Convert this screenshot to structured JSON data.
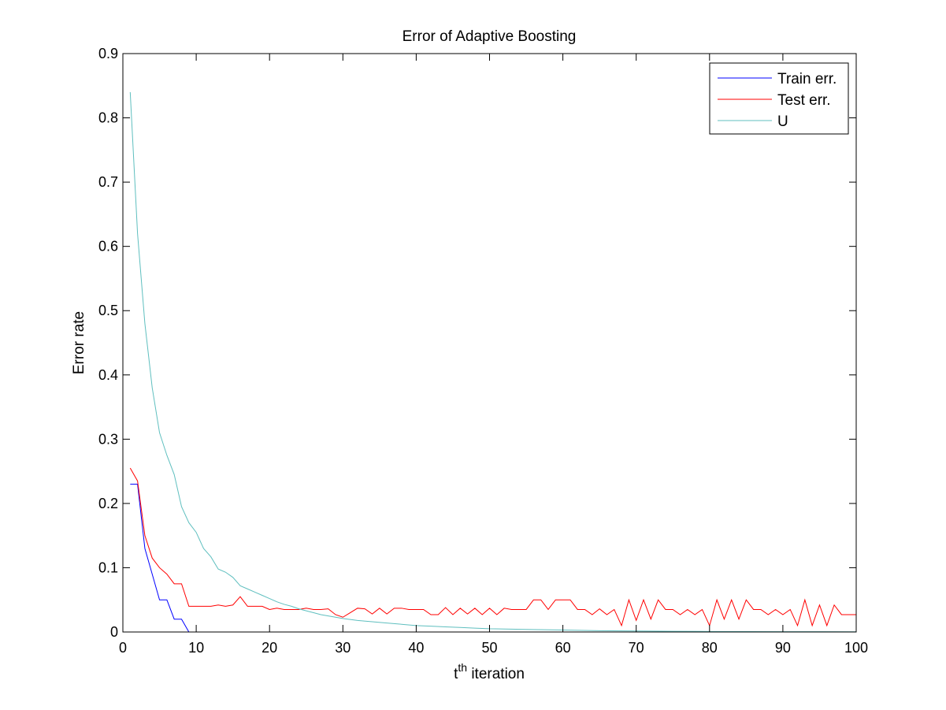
{
  "chart_data": {
    "type": "line",
    "title": "Error of Adaptive Boosting",
    "xlabel_base": "t",
    "xlabel_superscript": "th",
    "xlabel_rest": " iteration",
    "ylabel": "Error rate",
    "xlim": [
      0,
      100
    ],
    "ylim": [
      0,
      0.9
    ],
    "xticks": [
      0,
      10,
      20,
      30,
      40,
      50,
      60,
      70,
      80,
      90,
      100
    ],
    "yticks": [
      0,
      0.1,
      0.2,
      0.3,
      0.4,
      0.5,
      0.6,
      0.7,
      0.8,
      0.9
    ],
    "grid": false,
    "legend_position": "top-right",
    "series": [
      {
        "name": "Train err.",
        "color": "#0000ff",
        "x": [
          1,
          2,
          3,
          4,
          5,
          6,
          7,
          8,
          9
        ],
        "y": [
          0.23,
          0.23,
          0.13,
          0.09,
          0.05,
          0.05,
          0.02,
          0.02,
          0.0
        ]
      },
      {
        "name": "Test err.",
        "color": "#ff0000",
        "x": [
          1,
          2,
          3,
          4,
          5,
          6,
          7,
          8,
          9,
          10,
          11,
          12,
          13,
          14,
          15,
          16,
          17,
          18,
          19,
          20,
          21,
          22,
          23,
          24,
          25,
          26,
          27,
          28,
          29,
          30,
          31,
          32,
          33,
          34,
          35,
          36,
          37,
          38,
          39,
          40,
          41,
          42,
          43,
          44,
          45,
          46,
          47,
          48,
          49,
          50,
          51,
          52,
          53,
          54,
          55,
          56,
          57,
          58,
          59,
          60,
          61,
          62,
          63,
          64,
          65,
          66,
          67,
          68,
          69,
          70,
          71,
          72,
          73,
          74,
          75,
          76,
          77,
          78,
          79,
          80,
          81,
          82,
          83,
          84,
          85,
          86,
          87,
          88,
          89,
          90,
          91,
          92,
          93,
          94,
          95,
          96,
          97,
          98,
          99,
          100
        ],
        "y": [
          0.255,
          0.235,
          0.15,
          0.115,
          0.1,
          0.09,
          0.075,
          0.075,
          0.04,
          0.04,
          0.04,
          0.04,
          0.042,
          0.04,
          0.042,
          0.055,
          0.04,
          0.04,
          0.04,
          0.035,
          0.037,
          0.035,
          0.035,
          0.035,
          0.037,
          0.035,
          0.035,
          0.036,
          0.027,
          0.023,
          0.03,
          0.037,
          0.036,
          0.028,
          0.037,
          0.028,
          0.037,
          0.037,
          0.035,
          0.035,
          0.035,
          0.027,
          0.027,
          0.038,
          0.027,
          0.037,
          0.028,
          0.037,
          0.027,
          0.037,
          0.027,
          0.037,
          0.035,
          0.035,
          0.035,
          0.05,
          0.05,
          0.035,
          0.05,
          0.05,
          0.05,
          0.035,
          0.035,
          0.027,
          0.036,
          0.027,
          0.035,
          0.01,
          0.05,
          0.018,
          0.05,
          0.02,
          0.05,
          0.035,
          0.035,
          0.027,
          0.035,
          0.027,
          0.035,
          0.01,
          0.05,
          0.02,
          0.05,
          0.02,
          0.05,
          0.035,
          0.035,
          0.027,
          0.035,
          0.027,
          0.035,
          0.01,
          0.05,
          0.01,
          0.042,
          0.01,
          0.042,
          0.027,
          0.027,
          0.027
        ]
      },
      {
        "name": "U",
        "color": "#5fbfbf",
        "x": [
          1,
          2,
          3,
          4,
          5,
          6,
          7,
          8,
          9,
          10,
          11,
          12,
          13,
          14,
          15,
          16,
          17,
          18,
          19,
          20,
          21,
          22,
          23,
          24,
          25,
          26,
          27,
          28,
          29,
          30,
          32,
          34,
          36,
          38,
          40,
          42,
          44,
          46,
          48,
          50,
          55,
          60,
          65,
          70,
          75,
          80,
          85,
          90,
          95,
          100
        ],
        "y": [
          0.84,
          0.62,
          0.48,
          0.38,
          0.31,
          0.275,
          0.245,
          0.195,
          0.17,
          0.155,
          0.13,
          0.117,
          0.098,
          0.093,
          0.085,
          0.072,
          0.067,
          0.062,
          0.057,
          0.052,
          0.047,
          0.043,
          0.04,
          0.036,
          0.033,
          0.03,
          0.027,
          0.025,
          0.023,
          0.021,
          0.018,
          0.016,
          0.014,
          0.012,
          0.01,
          0.009,
          0.008,
          0.007,
          0.006,
          0.005,
          0.004,
          0.003,
          0.002,
          0.0015,
          0.001,
          0.0008,
          0.0006,
          0.0005,
          0.0004,
          0.0003
        ]
      }
    ]
  }
}
